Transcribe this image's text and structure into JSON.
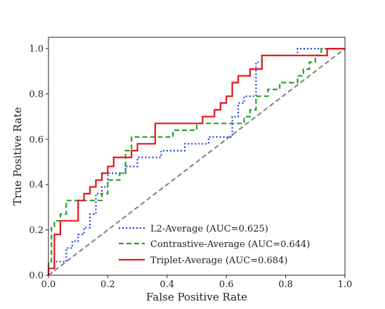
{
  "chart_data": {
    "type": "line",
    "xlabel": "False Positive Rate",
    "ylabel": "True Positive Rate",
    "xlim": [
      0.0,
      1.0
    ],
    "ylim": [
      0.0,
      1.05
    ],
    "xticks": [
      "0.0",
      "0.2",
      "0.4",
      "0.6",
      "0.8",
      "1.0"
    ],
    "yticks": [
      "0.0",
      "0.2",
      "0.4",
      "0.6",
      "0.8",
      "1.0"
    ],
    "grid": false,
    "legend_position": "lower-right",
    "series": [
      {
        "name": "L2-Average (AUC=0.625)",
        "color": "#1f3fe0",
        "style": "dotted",
        "x": [
          0.0,
          0.0,
          0.02,
          0.02,
          0.06,
          0.06,
          0.08,
          0.08,
          0.1,
          0.1,
          0.12,
          0.12,
          0.14,
          0.14,
          0.16,
          0.16,
          0.18,
          0.18,
          0.2,
          0.2,
          0.26,
          0.26,
          0.3,
          0.3,
          0.38,
          0.38,
          0.46,
          0.46,
          0.54,
          0.54,
          0.62,
          0.62,
          0.64,
          0.64,
          0.66,
          0.66,
          0.7,
          0.7,
          0.72,
          0.72,
          0.74,
          0.74,
          0.84,
          0.84,
          1.0
        ],
        "y": [
          0.0,
          0.03,
          0.03,
          0.06,
          0.06,
          0.12,
          0.12,
          0.15,
          0.15,
          0.18,
          0.18,
          0.21,
          0.21,
          0.27,
          0.27,
          0.36,
          0.36,
          0.39,
          0.39,
          0.45,
          0.45,
          0.48,
          0.48,
          0.52,
          0.52,
          0.55,
          0.55,
          0.58,
          0.58,
          0.61,
          0.61,
          0.7,
          0.7,
          0.76,
          0.76,
          0.79,
          0.79,
          0.94,
          0.94,
          0.97,
          0.97,
          0.97,
          0.97,
          1.0,
          1.0
        ]
      },
      {
        "name": "Contrastive-Average (AUC=0.644)",
        "color": "#2ca02c",
        "style": "dashed",
        "x": [
          0.0,
          0.0,
          0.01,
          0.01,
          0.02,
          0.02,
          0.04,
          0.04,
          0.06,
          0.06,
          0.18,
          0.18,
          0.2,
          0.2,
          0.24,
          0.24,
          0.26,
          0.26,
          0.28,
          0.28,
          0.42,
          0.42,
          0.5,
          0.5,
          0.66,
          0.66,
          0.68,
          0.68,
          0.7,
          0.7,
          0.74,
          0.74,
          0.78,
          0.78,
          0.84,
          0.84,
          0.86,
          0.86,
          0.88,
          0.88,
          0.9,
          0.9,
          0.92,
          0.92,
          0.96,
          0.96,
          1.0
        ],
        "y": [
          0.0,
          0.06,
          0.06,
          0.21,
          0.21,
          0.24,
          0.24,
          0.27,
          0.27,
          0.33,
          0.33,
          0.36,
          0.36,
          0.42,
          0.42,
          0.45,
          0.45,
          0.55,
          0.55,
          0.61,
          0.61,
          0.64,
          0.64,
          0.67,
          0.67,
          0.7,
          0.7,
          0.73,
          0.73,
          0.79,
          0.79,
          0.82,
          0.82,
          0.85,
          0.85,
          0.88,
          0.88,
          0.91,
          0.91,
          0.94,
          0.94,
          0.97,
          0.97,
          1.0,
          1.0,
          1.0,
          1.0
        ]
      },
      {
        "name": "Triplet-Average (AUC=0.684)",
        "color": "#e8141b",
        "style": "solid",
        "x": [
          0.0,
          0.0,
          0.02,
          0.02,
          0.04,
          0.04,
          0.06,
          0.06,
          0.1,
          0.1,
          0.12,
          0.12,
          0.14,
          0.14,
          0.16,
          0.16,
          0.18,
          0.18,
          0.2,
          0.2,
          0.22,
          0.22,
          0.26,
          0.26,
          0.28,
          0.28,
          0.3,
          0.3,
          0.36,
          0.36,
          0.52,
          0.52,
          0.56,
          0.56,
          0.58,
          0.58,
          0.6,
          0.6,
          0.62,
          0.62,
          0.64,
          0.64,
          0.68,
          0.68,
          0.72,
          0.72,
          0.94,
          0.94,
          1.0
        ],
        "y": [
          0.0,
          0.03,
          0.03,
          0.18,
          0.18,
          0.24,
          0.24,
          0.24,
          0.24,
          0.33,
          0.33,
          0.36,
          0.36,
          0.39,
          0.39,
          0.42,
          0.42,
          0.45,
          0.45,
          0.48,
          0.48,
          0.52,
          0.52,
          0.52,
          0.52,
          0.55,
          0.55,
          0.58,
          0.58,
          0.67,
          0.67,
          0.7,
          0.7,
          0.73,
          0.73,
          0.76,
          0.76,
          0.79,
          0.79,
          0.85,
          0.85,
          0.88,
          0.88,
          0.91,
          0.91,
          0.97,
          0.97,
          1.0,
          1.0
        ]
      }
    ],
    "reference_line": {
      "x": [
        0.0,
        1.0
      ],
      "y": [
        0.0,
        1.0
      ],
      "color": "#808080",
      "style": "dashed"
    }
  }
}
